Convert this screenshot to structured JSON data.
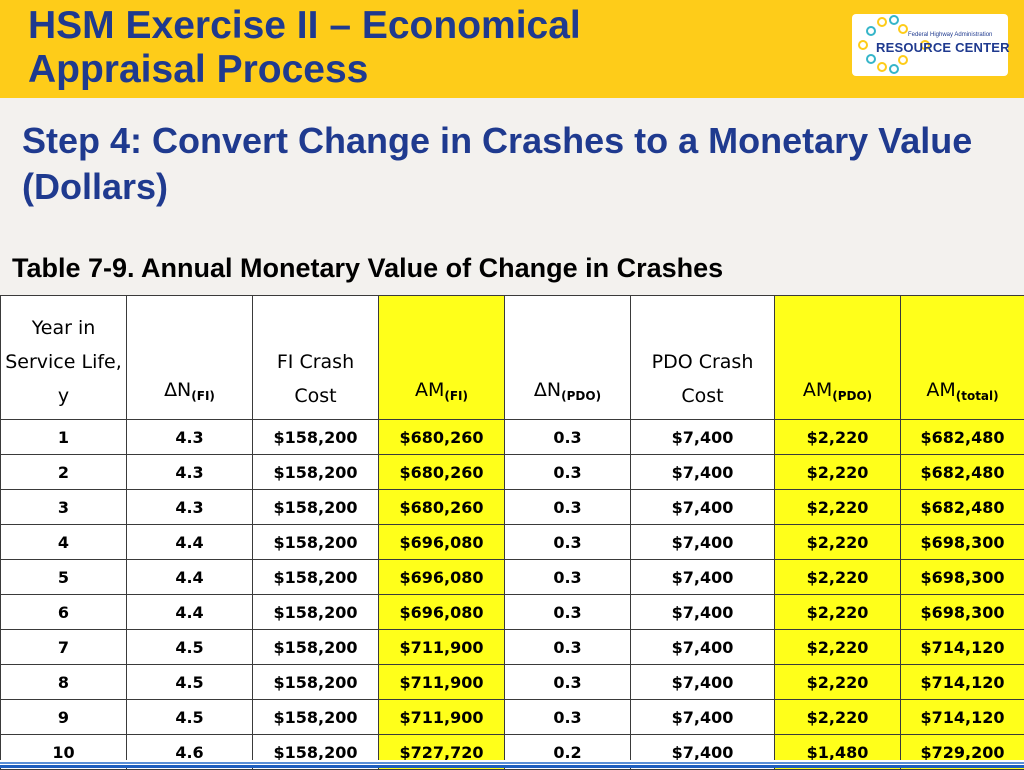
{
  "header": {
    "title_line1": "HSM Exercise II – Economical",
    "title_line2": "Appraisal Process",
    "logo": {
      "subtitle": "Federal Highway Administration",
      "name": "RESOURCE CENTER",
      "colors": {
        "blue": "#1f3a8f",
        "yellow": "#fecc19",
        "teal": "#35b5c9"
      }
    }
  },
  "step_title": "Step 4: Convert Change in Crashes to a Monetary Value (Dollars)",
  "table": {
    "caption": "Table 7-9. Annual Monetary Value of Change in Crashes",
    "highlight_color": "#ffff1a",
    "headers": [
      {
        "text": "Year in Service Life, y",
        "sub": ""
      },
      {
        "text": "ΔN",
        "sub": "(FI)"
      },
      {
        "text": "FI Crash Cost",
        "sub": ""
      },
      {
        "text": "AM",
        "sub": "(FI)"
      },
      {
        "text": "ΔN",
        "sub": "(PDO)"
      },
      {
        "text": "PDO Crash Cost",
        "sub": ""
      },
      {
        "text": "AM",
        "sub": "(PDO)"
      },
      {
        "text": "AM",
        "sub": "(total)"
      }
    ],
    "rows": [
      [
        "1",
        "4.3",
        "$158,200",
        "$680,260",
        "0.3",
        "$7,400",
        "$2,220",
        "$682,480"
      ],
      [
        "2",
        "4.3",
        "$158,200",
        "$680,260",
        "0.3",
        "$7,400",
        "$2,220",
        "$682,480"
      ],
      [
        "3",
        "4.3",
        "$158,200",
        "$680,260",
        "0.3",
        "$7,400",
        "$2,220",
        "$682,480"
      ],
      [
        "4",
        "4.4",
        "$158,200",
        "$696,080",
        "0.3",
        "$7,400",
        "$2,220",
        "$698,300"
      ],
      [
        "5",
        "4.4",
        "$158,200",
        "$696,080",
        "0.3",
        "$7,400",
        "$2,220",
        "$698,300"
      ],
      [
        "6",
        "4.4",
        "$158,200",
        "$696,080",
        "0.3",
        "$7,400",
        "$2,220",
        "$698,300"
      ],
      [
        "7",
        "4.5",
        "$158,200",
        "$711,900",
        "0.3",
        "$7,400",
        "$2,220",
        "$714,120"
      ],
      [
        "8",
        "4.5",
        "$158,200",
        "$711,900",
        "0.3",
        "$7,400",
        "$2,220",
        "$714,120"
      ],
      [
        "9",
        "4.5",
        "$158,200",
        "$711,900",
        "0.3",
        "$7,400",
        "$2,220",
        "$714,120"
      ],
      [
        "10",
        "4.6",
        "$158,200",
        "$727,720",
        "0.2",
        "$7,400",
        "$1,480",
        "$729,200"
      ]
    ]
  }
}
